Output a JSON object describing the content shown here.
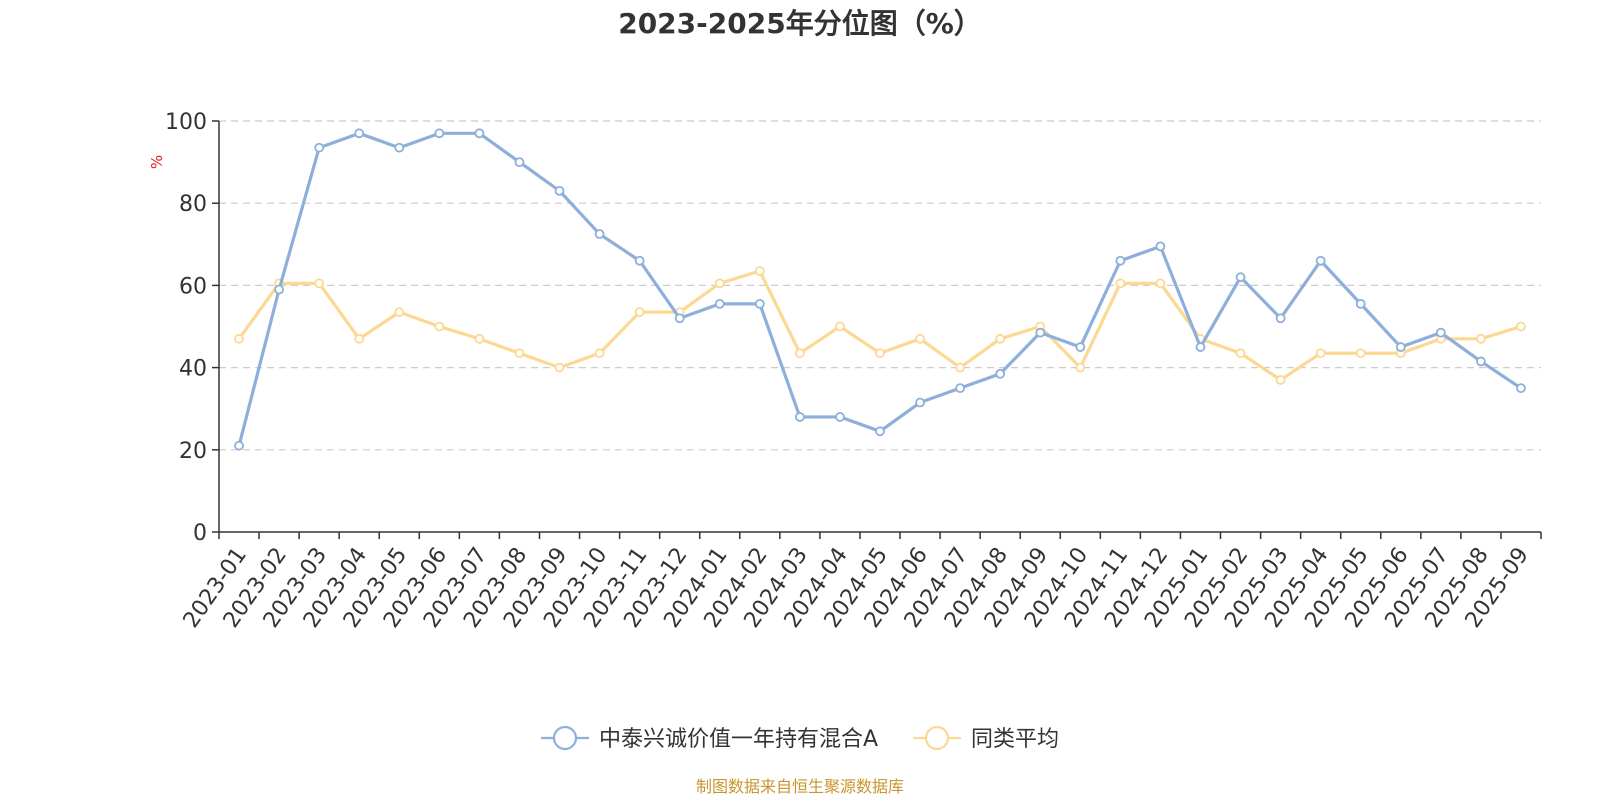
{
  "chart_data": {
    "type": "line",
    "title": "2023-2025年分位图（%）",
    "ylabel": "%",
    "xlabel": "",
    "ylim": [
      0,
      100
    ],
    "yticks": [
      0,
      20,
      40,
      60,
      80,
      100
    ],
    "grid": true,
    "legend_position": "bottom",
    "categories": [
      "2023-01",
      "2023-02",
      "2023-03",
      "2023-04",
      "2023-05",
      "2023-06",
      "2023-07",
      "2023-08",
      "2023-09",
      "2023-10",
      "2023-11",
      "2023-12",
      "2024-01",
      "2024-02",
      "2024-03",
      "2024-04",
      "2024-05",
      "2024-06",
      "2024-07",
      "2024-08",
      "2024-09",
      "2024-10",
      "2024-11",
      "2024-12",
      "2025-01",
      "2025-02",
      "2025-03",
      "2025-04",
      "2025-05",
      "2025-06",
      "2025-07",
      "2025-08",
      "2025-09"
    ],
    "series": [
      {
        "name": "中泰兴诚价值一年持有混合A",
        "color": "#8eaedb",
        "values": [
          21,
          59,
          93.5,
          97,
          93.5,
          97,
          97,
          90,
          83,
          72.5,
          66,
          52,
          55.5,
          55.5,
          28,
          28,
          24.5,
          31.5,
          35,
          38.5,
          48.5,
          45,
          66,
          69.5,
          45,
          62,
          52,
          66,
          55.5,
          45,
          48.5,
          41.5,
          35
        ]
      },
      {
        "name": "同类平均",
        "color": "#fcd892",
        "values": [
          47,
          60.5,
          60.5,
          47,
          53.5,
          50,
          47,
          43.5,
          40,
          43.5,
          53.5,
          53.5,
          60.5,
          63.5,
          43.5,
          50,
          43.5,
          47,
          40,
          47,
          50,
          40,
          60.5,
          60.5,
          47,
          43.5,
          37,
          43.5,
          43.5,
          43.5,
          47,
          47,
          50
        ]
      }
    ]
  },
  "source_note": "制图数据来自恒生聚源数据库"
}
